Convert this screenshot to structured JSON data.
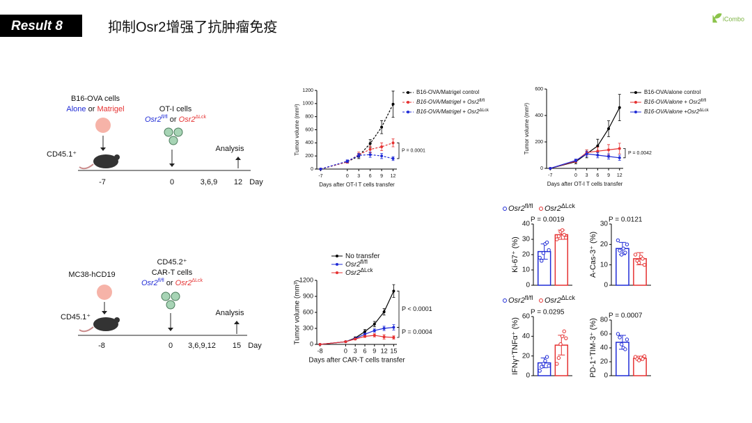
{
  "header": {
    "badge": "Result 8",
    "title": "抑制Osr2增强了抗肿瘤免疫",
    "logo": "iCombo"
  },
  "diagrams": [
    {
      "cells": "B16-OVA cells",
      "alone": "Alone",
      "or1": "or",
      "matrigel": "Matrigel",
      "tcells": "OT-I cells",
      "gene1": "Osr2",
      "sup1": "fl/fl",
      "or2": "or",
      "gene2": "Osr2",
      "sup2": "ΔLck",
      "host": "CD45.1⁺",
      "analysis": "Analysis",
      "timeline": [
        "-7",
        "0",
        "3,6,9",
        "12"
      ],
      "unit": "Day"
    },
    {
      "cells": "MC38-hCD19",
      "donor": "CD45.2⁺",
      "tcells": "CAR-T cells",
      "gene1": "Osr2",
      "sup1": "fl/fl",
      "or2": "or",
      "gene2": "Osr2",
      "sup2": "ΔLck",
      "host": "CD45.1⁺",
      "analysis": "Analysis",
      "timeline": [
        "-8",
        "0",
        "3,6,9,12",
        "15"
      ],
      "unit": "Day"
    }
  ],
  "chart_data": [
    {
      "type": "line",
      "ylabel": "Tumor volume (mm³)",
      "xlabel": "Days after OT-I T cells transfer",
      "x": [
        -7,
        0,
        3,
        6,
        9,
        12
      ],
      "xlim": [
        -8,
        13
      ],
      "xticks": [
        -7,
        0,
        3,
        6,
        9,
        12
      ],
      "ylim": [
        0,
        1200
      ],
      "yticks": [
        0,
        200,
        400,
        600,
        800,
        1000,
        1200
      ],
      "series": [
        {
          "name": "B16-OVA/Matrigel control",
          "color": "#000000",
          "dashed": true,
          "values": [
            0,
            110,
            200,
            390,
            640,
            990
          ],
          "errors": [
            0,
            20,
            40,
            60,
            100,
            200
          ]
        },
        {
          "name": "B16-OVA/Matrigel + Osr2",
          "sup": "fl/fl",
          "color": "#e53030",
          "dashed": true,
          "values": [
            0,
            110,
            220,
            300,
            340,
            400
          ],
          "errors": [
            0,
            20,
            40,
            50,
            60,
            60
          ]
        },
        {
          "name": "B16-OVA/Matrigel + Osr2",
          "sup": "ΔLck",
          "color": "#1f2bd6",
          "dashed": true,
          "values": [
            0,
            120,
            210,
            220,
            200,
            160
          ],
          "errors": [
            0,
            20,
            30,
            40,
            40,
            30
          ]
        }
      ],
      "annotations": [
        "P = 0.0001"
      ]
    },
    {
      "type": "line",
      "ylabel": "Tumor volume (mm³)",
      "xlabel": "Days after OT-I T cells transfer",
      "x": [
        -7,
        0,
        3,
        6,
        9,
        12
      ],
      "xlim": [
        -8,
        13
      ],
      "xticks": [
        -7,
        0,
        3,
        6,
        9,
        12
      ],
      "ylim": [
        0,
        600
      ],
      "yticks": [
        0,
        200,
        400,
        600
      ],
      "series": [
        {
          "name": "B16-OVA/alone control",
          "color": "#000000",
          "dashed": false,
          "values": [
            0,
            50,
            110,
            170,
            300,
            460
          ],
          "errors": [
            0,
            15,
            30,
            50,
            60,
            100
          ]
        },
        {
          "name": "B16-OVA/alone + Osr2",
          "sup": "fl/fl",
          "color": "#e53030",
          "dashed": false,
          "values": [
            0,
            55,
            120,
            130,
            140,
            150
          ],
          "errors": [
            0,
            10,
            20,
            30,
            40,
            40
          ]
        },
        {
          "name": "B16-OVA/alone +Osr2",
          "sup": "ΔLck",
          "color": "#1f2bd6",
          "dashed": false,
          "values": [
            0,
            60,
            110,
            100,
            90,
            80
          ],
          "errors": [
            0,
            10,
            20,
            20,
            20,
            20
          ]
        }
      ],
      "annotations": [
        "P = 0.0042"
      ]
    },
    {
      "type": "line",
      "ylabel": "Tumor volume (mm³)",
      "xlabel": "Days after CAR-T cells transfer",
      "x": [
        -8,
        0,
        3,
        6,
        9,
        12,
        15
      ],
      "xlim": [
        -9,
        16
      ],
      "xticks": [
        -8,
        0,
        3,
        6,
        9,
        12,
        15
      ],
      "ylim": [
        0,
        1200
      ],
      "yticks": [
        0,
        300,
        600,
        900,
        1200
      ],
      "series": [
        {
          "name": "No transfer",
          "color": "#000000",
          "dashed": false,
          "values": [
            0,
            50,
            120,
            240,
            380,
            610,
            1000
          ],
          "errors": [
            0,
            10,
            20,
            40,
            50,
            60,
            120
          ]
        },
        {
          "name": "Osr2",
          "sup": "fl/fl",
          "color": "#1f2bd6",
          "dashed": false,
          "values": [
            0,
            50,
            110,
            190,
            260,
            300,
            320
          ],
          "errors": [
            0,
            10,
            15,
            20,
            30,
            40,
            50
          ]
        },
        {
          "name": "Osr2",
          "sup": "ΔLck",
          "color": "#e53030",
          "dashed": false,
          "values": [
            0,
            50,
            100,
            150,
            170,
            140,
            130
          ],
          "errors": [
            0,
            10,
            15,
            20,
            30,
            40,
            30
          ]
        }
      ],
      "annotations": [
        "P < 0.0001",
        "P = 0.0004"
      ]
    },
    {
      "type": "bar",
      "ylabel": "Ki-67⁺ (%)",
      "ylim": [
        0,
        40
      ],
      "yticks": [
        0,
        10,
        20,
        30,
        40
      ],
      "colors": [
        "#1f2bd6",
        "#e53030"
      ],
      "values": [
        22,
        33
      ],
      "errors": [
        5,
        3
      ],
      "points": [
        [
          18,
          16,
          21,
          27,
          28,
          23
        ],
        [
          30,
          32,
          35,
          36,
          33,
          31
        ]
      ],
      "annotations": [
        "P = 0.0019"
      ],
      "legend": [
        {
          "name": "Osr2",
          "sup": "fl/fl"
        },
        {
          "name": "Osr2",
          "sup": "ΔLck"
        }
      ]
    },
    {
      "type": "bar",
      "ylabel": "A-Cas-3⁺ (%)",
      "ylim": [
        0,
        30
      ],
      "yticks": [
        0,
        10,
        20,
        30
      ],
      "colors": [
        "#1f2bd6",
        "#e53030"
      ],
      "values": [
        18,
        13
      ],
      "errors": [
        3,
        3
      ],
      "points": [
        [
          22,
          17,
          15,
          18,
          16,
          20
        ],
        [
          15,
          12,
          11,
          14,
          13,
          10
        ]
      ],
      "annotations": [
        "P = 0.0121"
      ]
    },
    {
      "type": "bar",
      "ylabel": "IFNγ⁺TNFα⁺ (%)",
      "ylim": [
        0,
        60
      ],
      "yticks": [
        0,
        20,
        40,
        60
      ],
      "colors": [
        "#1f2bd6",
        "#e53030"
      ],
      "values": [
        13,
        31
      ],
      "errors": [
        5,
        10
      ],
      "points": [
        [
          5,
          9,
          12,
          15,
          19,
          10
        ],
        [
          12,
          18,
          32,
          40,
          45,
          38
        ]
      ],
      "annotations": [
        "P = 0.0295"
      ],
      "legend": [
        {
          "name": "Osr2",
          "sup": "fl/fl"
        },
        {
          "name": "Osr2",
          "sup": "ΔLck"
        }
      ]
    },
    {
      "type": "bar",
      "ylabel": "PD-1⁺TIM-3⁺ (%)",
      "ylim": [
        0,
        80
      ],
      "yticks": [
        0,
        20,
        40,
        60,
        80
      ],
      "colors": [
        "#1f2bd6",
        "#e53030"
      ],
      "values": [
        48,
        25
      ],
      "errors": [
        10,
        3
      ],
      "points": [
        [
          60,
          55,
          45,
          40,
          38,
          52
        ],
        [
          27,
          24,
          22,
          26,
          24,
          28
        ]
      ],
      "annotations": [
        "P = 0.0007"
      ]
    }
  ]
}
